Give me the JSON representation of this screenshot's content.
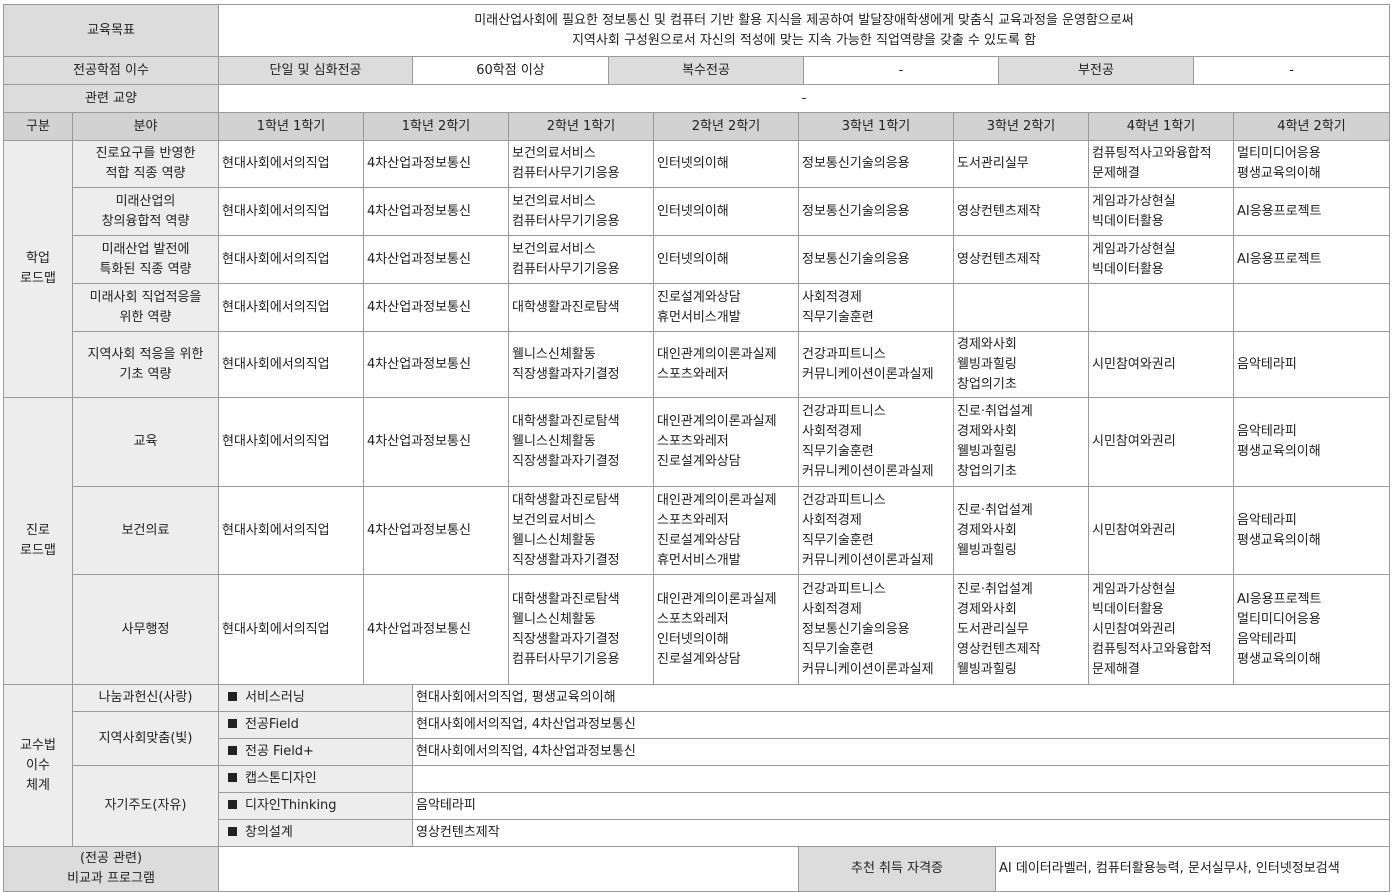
{
  "top": {
    "goal_label": "교육목표",
    "goal_text_1": "미래산업사회에 필요한 정보통신 및 컴퓨터 기반 활용 지식을 제공하여 발달장애학생에게 맞춤식 교육과정을 운영함으로써",
    "goal_text_2": "지역사회 구성원으로서 자신의 적성에 맞는 지속 가능한 직업역량을 갖출 수 있도록 함",
    "credits_label": "전공학점 이수",
    "single_label": "단일 및 심화전공",
    "single_value": "60학점 이상",
    "double_label": "복수전공",
    "double_value": "-",
    "minor_label": "부전공",
    "minor_value": "-",
    "liberal_label": "관련 교양",
    "liberal_value": "-"
  },
  "header": [
    "구분",
    "분야",
    "1학년 1학기",
    "1학년 2학기",
    "2학년 1학기",
    "2학년 2학기",
    "3학년 1학기",
    "3학년 2학기",
    "4학년 1학기",
    "4학년 2학기"
  ],
  "groups": [
    {
      "name": "학업\n로드맵",
      "rows": [
        {
          "field": "진로요구를 반영한\n적합 직종 역량",
          "cells": [
            "현대사회에서의직업",
            "4차산업과정보통신",
            "보건의료서비스\n컴퓨터사무기기응용",
            "인터넷의이해",
            "정보통신기술의응용",
            "도서관리실무",
            "컴퓨팅적사고와융합적\n문제해결",
            "멀티미디어응용\n평생교육의이해"
          ]
        },
        {
          "field": "미래산업의\n창의융합적 역량",
          "cells": [
            "현대사회에서의직업",
            "4차산업과정보통신",
            "보건의료서비스\n컴퓨터사무기기응용",
            "인터넷의이해",
            "정보통신기술의응용",
            "영상컨텐츠제작",
            "게임과가상현실\n빅데이터활용",
            "AI응용프로젝트"
          ]
        },
        {
          "field": "미래산업 발전에\n특화된 직종 역량",
          "cells": [
            "현대사회에서의직업",
            "4차산업과정보통신",
            "보건의료서비스\n컴퓨터사무기기응용",
            "인터넷의이해",
            "정보통신기술의응용",
            "영상컨텐츠제작",
            "게임과가상현실\n빅데이터활용",
            "AI응용프로젝트"
          ]
        },
        {
          "field": "미래사회 직업적응을\n위한 역량",
          "cells": [
            "현대사회에서의직업",
            "4차산업과정보통신",
            "대학생활과진로탐색",
            "진로설계와상담\n휴먼서비스개발",
            "사회적경제\n직무기술훈련",
            "",
            "",
            ""
          ]
        },
        {
          "field": "지역사회 적응을 위한\n기초 역량",
          "cells": [
            "현대사회에서의직업",
            "4차산업과정보통신",
            "웰니스신체활동\n직장생활과자기결정",
            "대인관계의이론과실제\n스포츠와레저",
            "건강과피트니스\n커뮤니케이션이론과실제",
            "경제와사회\n웰빙과힐링\n창업의기초",
            "시민참여와권리",
            "음악테라피"
          ]
        }
      ]
    },
    {
      "name": "진로\n로드맵",
      "rows": [
        {
          "field": "교육",
          "cells": [
            "현대사회에서의직업",
            "4차산업과정보통신",
            "대학생활과진로탐색\n웰니스신체활동\n직장생활과자기결정",
            "대인관계의이론과실제\n스포츠와레저\n진로설계와상담",
            "건강과피트니스\n사회적경제\n직무기술훈련\n커뮤니케이션이론과실제",
            "진로·취업설계\n경제와사회\n웰빙과힐링\n창업의기초",
            "시민참여와권리",
            "음악테라피\n평생교육의이해"
          ]
        },
        {
          "field": "보건의료",
          "cells": [
            "현대사회에서의직업",
            "4차산업과정보통신",
            "대학생활과진로탐색\n보건의료서비스\n웰니스신체활동\n직장생활과자기결정",
            "대인관계의이론과실제\n스포츠와레저\n진로설계와상담\n휴먼서비스개발",
            "건강과피트니스\n사회적경제\n직무기술훈련\n커뮤니케이션이론과실제",
            "진로·취업설계\n경제와사회\n웰빙과힐링",
            "시민참여와권리",
            "음악테라피\n평생교육의이해"
          ]
        },
        {
          "field": "사무행정",
          "cells": [
            "현대사회에서의직업",
            "4차산업과정보통신",
            "대학생활과진로탐색\n웰니스신체활동\n직장생활과자기결정\n컴퓨터사무기기응용",
            "대인관계의이론과실제\n스포츠와레저\n인터넷의이해\n진로설계와상담",
            "건강과피트니스\n사회적경제\n정보통신기술의응용\n직무기술훈련\n커뮤니케이션이론과실제",
            "진로·취업설계\n경제와사회\n도서관리실무\n영상컨텐츠제작\n웰빙과힐링",
            "게임과가상현실\n빅데이터활용\n시민참여와권리\n컴퓨팅적사고와융합적\n문제해결",
            "AI응용프로젝트\n멀티미디어응용\n음악테라피\n평생교육의이해"
          ]
        }
      ]
    }
  ],
  "teaching": {
    "label": "교수법\n이수\n체계",
    "categories": [
      {
        "name": "나눔과헌신(사랑)",
        "items": [
          {
            "method": "서비스러닝",
            "courses": "현대사회에서의직업, 평생교육의이해"
          }
        ]
      },
      {
        "name": "지역사회맞춤(빛)",
        "items": [
          {
            "method": "전공Field",
            "courses": "현대사회에서의직업, 4차산업과정보통신"
          },
          {
            "method": "전공 Field+",
            "courses": "현대사회에서의직업, 4차산업과정보통신"
          }
        ]
      },
      {
        "name": "자기주도(자유)",
        "items": [
          {
            "method": "캡스톤디자인",
            "courses": ""
          },
          {
            "method": "디자인Thinking",
            "courses": "음악테라피"
          },
          {
            "method": "창의설계",
            "courses": "영상컨텐츠제작"
          }
        ]
      }
    ]
  },
  "footer": {
    "program_label": "(전공 관련)\n비교과 프로그램",
    "program_value": "",
    "cert_label": "추천 취득 자격증",
    "cert_value": "AI 데이터라벨러, 컴퓨터활용능력, 문서실무사, 인터넷정보검색"
  }
}
